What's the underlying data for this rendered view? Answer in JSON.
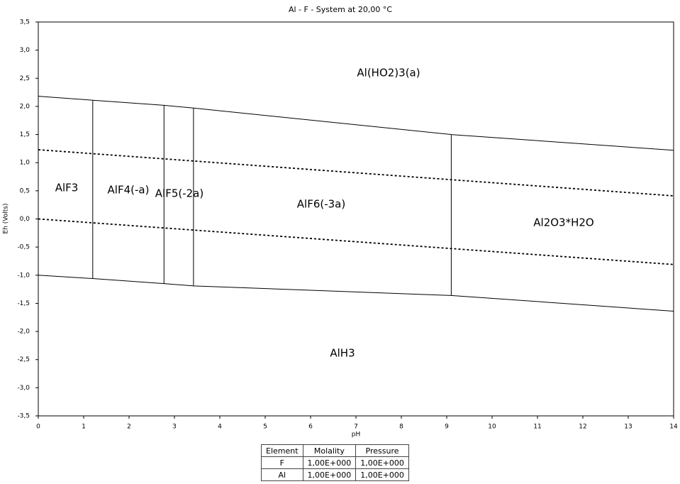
{
  "chart_data": {
    "type": "line",
    "title": "Al - F - System at 20,00 °C",
    "x_label": "pH",
    "y_label": "Eh (Volts)",
    "xlim": [
      0,
      14
    ],
    "ylim": [
      -3.5,
      3.5
    ],
    "xticks": [
      0,
      1,
      2,
      3,
      4,
      5,
      6,
      7,
      8,
      9,
      10,
      11,
      12,
      13,
      14
    ],
    "yticks": [
      {
        "value": 3.5,
        "label": "3,5"
      },
      {
        "value": 3,
        "label": "3,0"
      },
      {
        "value": 2.5,
        "label": "2,5"
      },
      {
        "value": 2,
        "label": "2,0"
      },
      {
        "value": 1.5,
        "label": "1,5"
      },
      {
        "value": 1,
        "label": "1,0"
      },
      {
        "value": 0.5,
        "label": "0,5"
      },
      {
        "value": 0,
        "label": "0,0"
      },
      {
        "value": -0.5,
        "label": "-0,5"
      },
      {
        "value": -1,
        "label": "-1,0"
      },
      {
        "value": -1.5,
        "label": "-1,5"
      },
      {
        "value": -2,
        "label": "-2,0"
      },
      {
        "value": -2.5,
        "label": "-2,5"
      },
      {
        "value": -3,
        "label": "-3,0"
      },
      {
        "value": -3.5,
        "label": "-3,5"
      }
    ],
    "series": [
      {
        "color": "#000000",
        "dash": "solid",
        "x": [
          0,
          1.2,
          2.77,
          3.42,
          9.1,
          14
        ],
        "values": [
          2.18,
          2.11,
          2.02,
          1.97,
          1.5,
          1.22
        ]
      },
      {
        "color": "#000000",
        "dash": "solid",
        "x": [
          0,
          1.2,
          2.77,
          3.42,
          9.1,
          14
        ],
        "values": [
          -1.0,
          -1.06,
          -1.15,
          -1.19,
          -1.36,
          -1.64
        ]
      },
      {
        "color": "#000000",
        "dash": "dotted",
        "x": [
          0,
          14
        ],
        "values": [
          1.23,
          0.41
        ]
      },
      {
        "color": "#000000",
        "dash": "dotted",
        "x": [
          0,
          14
        ],
        "values": [
          0,
          -0.81
        ]
      },
      {
        "color": "#000000",
        "dash": "solid",
        "x": [
          1.2,
          1.2
        ],
        "values": [
          -1.06,
          2.11
        ]
      },
      {
        "color": "#000000",
        "dash": "solid",
        "x": [
          2.77,
          2.77
        ],
        "values": [
          -1.15,
          2.02
        ]
      },
      {
        "color": "#000000",
        "dash": "solid",
        "x": [
          3.42,
          3.42
        ],
        "values": [
          -1.19,
          1.97
        ]
      },
      {
        "color": "#000000",
        "dash": "solid",
        "x": [
          9.1,
          9.1
        ],
        "values": [
          -1.36,
          1.5
        ]
      }
    ],
    "annotations": [
      "Al(HO2)3(a)",
      "AlF3",
      "AlF4(-a)",
      "AlF5(-2a)",
      "AlF6(-3a)",
      "Al2O3*H2O",
      "AlH3"
    ],
    "table": {
      "columns": [
        "Element",
        "Molality",
        "Pressure"
      ],
      "rows": [
        [
          "F",
          "1,00E+000",
          "1,00E+000"
        ],
        [
          "Al",
          "1,00E+000",
          "1,00E+000"
        ]
      ]
    }
  }
}
